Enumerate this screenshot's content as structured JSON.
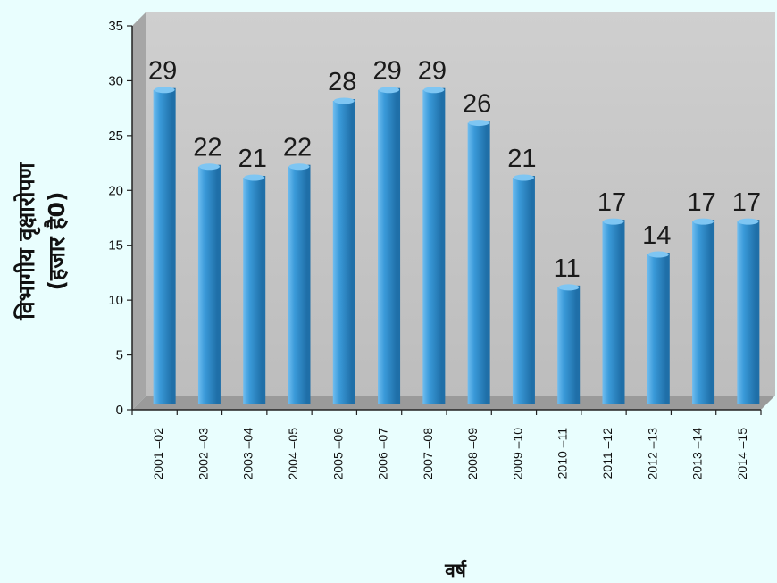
{
  "chart_data": {
    "type": "bar",
    "title": "",
    "xlabel": "वर्ष",
    "ylabel_lines": [
      "विभागीय वृक्षारोपण",
      "(हजार है0)"
    ],
    "categories": [
      "2001 –02",
      "2002 –03",
      "2003 –04",
      "2004 –05",
      "2005 –06",
      "2006 –07",
      "2007 –08",
      "2008 –09",
      "2009 –10",
      "2010 –11",
      "2011 –12",
      "2012 –13",
      "2013 –14",
      "2014 –15"
    ],
    "values": [
      29,
      22,
      21,
      22,
      28,
      29,
      29,
      26,
      21,
      11,
      17,
      14,
      17,
      17
    ],
    "data_labels": [
      "29",
      "22",
      "21",
      "22",
      "28",
      "29",
      "29",
      "26",
      "21",
      "11",
      "17",
      "14",
      "17",
      "17"
    ],
    "ylim": [
      0,
      35
    ],
    "yticks": [
      0,
      5,
      10,
      15,
      20,
      25,
      30,
      35
    ],
    "grid": false,
    "legend": "none",
    "style": "3d-cylinder",
    "colors": {
      "background": "#e9fefe",
      "plot_back_wall": "#c4c4c4",
      "plot_side_wall": "#a6a6a6",
      "plot_floor": "#9a9a9a",
      "bar": "#3a9ad9",
      "bar_highlight": "#6fbdf0",
      "bar_shadow": "#1f6fa8",
      "bar_top": "#7ec6f3",
      "text": "#111111"
    }
  }
}
